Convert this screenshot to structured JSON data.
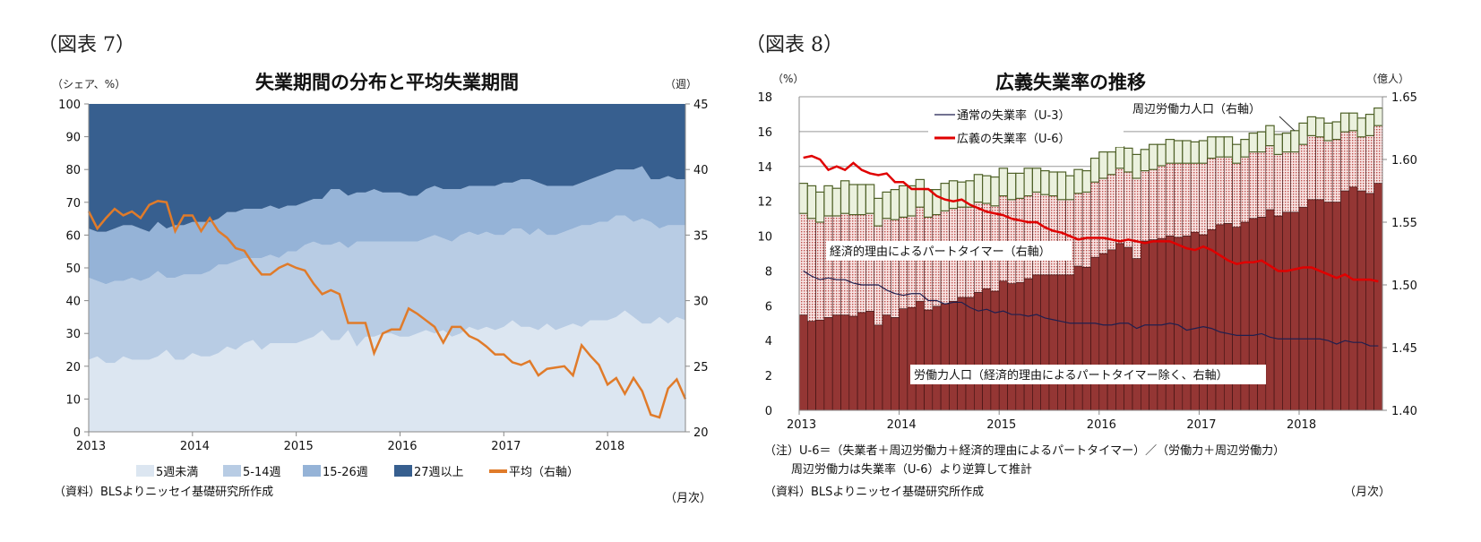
{
  "chart_data": [
    {
      "type": "area",
      "figure_label": "（図表 7）",
      "title": "失業期間の分布と平均失業期間",
      "ylabel_left": "（シェア、%）",
      "ylabel_right": "（週）",
      "xlabel": "（月次）",
      "source": "（資料）BLSよりニッセイ基礎研究所作成",
      "x_start": "2013-01",
      "x_frequency": "monthly",
      "x_ticks": [
        "2013",
        "2014",
        "2015",
        "2016",
        "2017",
        "2018"
      ],
      "ylim_left": [
        0,
        100
      ],
      "yticks_left": [
        0,
        10,
        20,
        30,
        40,
        50,
        60,
        70,
        80,
        90,
        100
      ],
      "ylim_right": [
        20,
        45
      ],
      "yticks_right": [
        20,
        25,
        30,
        35,
        40,
        45
      ],
      "stacked": true,
      "legend_position": "bottom",
      "series": [
        {
          "name": "5週未満",
          "color": "#dce6f1",
          "axis": "left",
          "values": [
            22,
            23,
            21,
            21,
            23,
            22,
            22,
            22,
            23,
            25,
            22,
            22,
            24,
            23,
            23,
            24,
            26,
            25,
            27,
            28,
            25,
            27,
            27,
            27,
            27,
            28,
            29,
            31,
            28,
            28,
            31,
            26,
            29,
            29,
            30,
            30,
            29,
            29,
            30,
            31,
            30,
            31,
            29,
            30,
            32,
            31,
            32,
            31,
            32,
            34,
            32,
            32,
            31,
            33,
            31,
            32,
            33,
            32,
            34,
            34,
            34,
            35,
            37,
            35,
            33,
            33,
            35,
            33,
            35,
            34
          ]
        },
        {
          "name": "5-14週",
          "color": "#b8cce4",
          "axis": "left",
          "values": [
            25,
            23,
            24,
            25,
            23,
            25,
            24,
            25,
            26,
            22,
            25,
            26,
            24,
            25,
            26,
            27,
            25,
            27,
            26,
            25,
            28,
            27,
            26,
            28,
            28,
            29,
            29,
            26,
            29,
            30,
            25,
            32,
            29,
            29,
            28,
            28,
            29,
            29,
            28,
            28,
            30,
            28,
            29,
            30,
            29,
            29,
            29,
            29,
            28,
            28,
            30,
            28,
            31,
            27,
            29,
            29,
            29,
            31,
            29,
            30,
            30,
            31,
            29,
            29,
            32,
            31,
            27,
            30,
            28,
            29
          ]
        },
        {
          "name": "15-26週",
          "color": "#95b3d7",
          "axis": "left",
          "values": [
            15,
            15,
            16,
            16,
            17,
            16,
            16,
            14,
            15,
            15,
            16,
            15,
            16,
            16,
            15,
            14,
            16,
            15,
            15,
            15,
            15,
            15,
            15,
            14,
            14,
            13,
            13,
            14,
            17,
            16,
            16,
            15,
            15,
            16,
            15,
            15,
            15,
            14,
            14,
            15,
            15,
            15,
            16,
            14,
            14,
            15,
            14,
            15,
            16,
            14,
            15,
            17,
            14,
            15,
            15,
            14,
            13,
            13,
            14,
            14,
            15,
            14,
            14,
            16,
            16,
            13,
            15,
            15,
            14,
            14
          ]
        },
        {
          "name": "27週以上",
          "color": "#375f8f",
          "axis": "left",
          "values": [
            38,
            39,
            39,
            38,
            37,
            37,
            38,
            39,
            36,
            38,
            37,
            37,
            36,
            36,
            36,
            35,
            33,
            33,
            32,
            32,
            32,
            31,
            32,
            31,
            31,
            30,
            29,
            29,
            26,
            26,
            28,
            27,
            27,
            26,
            27,
            27,
            27,
            28,
            28,
            26,
            25,
            26,
            26,
            26,
            25,
            25,
            25,
            25,
            24,
            24,
            23,
            23,
            24,
            25,
            25,
            25,
            25,
            24,
            23,
            22,
            21,
            20,
            20,
            20,
            19,
            23,
            23,
            22,
            23,
            23
          ]
        },
        {
          "name": "平均（右軸）",
          "type": "line",
          "color": "#e07b2a",
          "axis": "right",
          "values": [
            36.8,
            35.5,
            36.3,
            37,
            36.5,
            36.8,
            36.3,
            37.3,
            37.6,
            37.5,
            35.3,
            36.5,
            36.5,
            35.3,
            36.3,
            35.3,
            34.8,
            34,
            33.8,
            32.8,
            32,
            32,
            32.5,
            32.8,
            32.5,
            32.3,
            31.3,
            30.5,
            30.8,
            30.5,
            28.3,
            28.3,
            28.3,
            26,
            27.5,
            27.8,
            27.8,
            29.4,
            29,
            28.5,
            28,
            26.8,
            28,
            28,
            27.3,
            27,
            26.5,
            25.9,
            25.9,
            25.3,
            25.1,
            25.4,
            24.3,
            24.8,
            24.9,
            25,
            24.3,
            26.6,
            25.8,
            25.1,
            23.6,
            24.1,
            22.9,
            24.1,
            23.1,
            21.3,
            21.1,
            23.3,
            24,
            22.5
          ]
        }
      ]
    },
    {
      "type": "bar",
      "figure_label": "（図表 8）",
      "title": "広義失業率の推移",
      "ylabel_left": "（%）",
      "ylabel_right": "（億人）",
      "xlabel": "（月次）",
      "x_start": "2013-01",
      "x_frequency": "monthly",
      "x_ticks": [
        "2013",
        "2014",
        "2015",
        "2016",
        "2017",
        "2018"
      ],
      "ylim_left": [
        0,
        18
      ],
      "yticks_left": [
        0,
        2,
        4,
        6,
        8,
        10,
        12,
        14,
        16,
        18
      ],
      "ylim_right": [
        1.4,
        1.65
      ],
      "yticks_right": [
        "1.40",
        "1.45",
        "1.50",
        "1.55",
        "1.60",
        "1.65"
      ],
      "stacked": true,
      "grid": true,
      "notes": [
        "（注）U-6＝（失業者＋周辺労働力＋経済的理由によるパートタイマー）／（労働力＋周辺労働力）",
        "周辺労働力は失業率（U-6）より逆算して推計"
      ],
      "source": "（資料）BLSよりニッセイ基礎研究所作成",
      "annotations": {
        "labor_force": "労働力人口（経済的理由によるパートタイマー除く、右軸）",
        "part_time": "経済的理由によるパートタイマー（右軸）",
        "marginal": "周辺労働力人口（右軸）"
      },
      "legend": [
        "通常の失業率（U-3）",
        "広義の失業率（U-6）"
      ],
      "bar_series": [
        {
          "key": "labor_force",
          "color": "#943634",
          "axis": "right",
          "values": [
            1.476,
            1.471,
            1.472,
            1.474,
            1.476,
            1.476,
            1.475,
            1.478,
            1.479,
            1.468,
            1.476,
            1.474,
            1.481,
            1.482,
            1.487,
            1.48,
            1.483,
            1.485,
            1.487,
            1.49,
            1.49,
            1.494,
            1.497,
            1.495,
            1.503,
            1.501,
            1.502,
            1.505,
            1.508,
            1.508,
            1.508,
            1.508,
            1.508,
            1.515,
            1.514,
            1.522,
            1.525,
            1.528,
            1.533,
            1.53,
            1.521,
            1.535,
            1.536,
            1.537,
            1.539,
            1.538,
            1.539,
            1.542,
            1.54,
            1.544,
            1.548,
            1.549,
            1.546,
            1.55,
            1.553,
            1.554,
            1.56,
            1.555,
            1.558,
            1.558,
            1.562,
            1.568,
            1.568,
            1.566,
            1.566,
            1.575,
            1.578,
            1.575,
            1.573,
            1.581
          ]
        },
        {
          "key": "part_time",
          "color": "#e6b9b8",
          "axis": "right",
          "values": [
            0.081,
            0.082,
            0.078,
            0.081,
            0.079,
            0.081,
            0.081,
            0.078,
            0.078,
            0.079,
            0.077,
            0.078,
            0.073,
            0.073,
            0.075,
            0.074,
            0.073,
            0.074,
            0.074,
            0.072,
            0.072,
            0.072,
            0.068,
            0.068,
            0.068,
            0.067,
            0.067,
            0.066,
            0.066,
            0.064,
            0.063,
            0.06,
            0.06,
            0.058,
            0.06,
            0.06,
            0.06,
            0.06,
            0.06,
            0.06,
            0.064,
            0.056,
            0.056,
            0.058,
            0.058,
            0.059,
            0.058,
            0.055,
            0.057,
            0.057,
            0.054,
            0.053,
            0.051,
            0.052,
            0.053,
            0.052,
            0.051,
            0.049,
            0.048,
            0.048,
            0.05,
            0.051,
            0.05,
            0.049,
            0.05,
            0.047,
            0.045,
            0.043,
            0.046,
            0.046
          ]
        },
        {
          "key": "marginal",
          "color": "#ebf1de",
          "axis": "right",
          "values": [
            0.024,
            0.026,
            0.024,
            0.024,
            0.022,
            0.026,
            0.024,
            0.024,
            0.023,
            0.022,
            0.021,
            0.024,
            0.025,
            0.024,
            0.022,
            0.022,
            0.02,
            0.022,
            0.022,
            0.02,
            0.021,
            0.022,
            0.022,
            0.023,
            0.022,
            0.021,
            0.02,
            0.022,
            0.019,
            0.019,
            0.019,
            0.022,
            0.019,
            0.019,
            0.017,
            0.019,
            0.021,
            0.018,
            0.017,
            0.019,
            0.019,
            0.017,
            0.02,
            0.017,
            0.019,
            0.018,
            0.018,
            0.017,
            0.018,
            0.017,
            0.016,
            0.016,
            0.015,
            0.014,
            0.015,
            0.016,
            0.016,
            0.016,
            0.015,
            0.017,
            0.017,
            0.015,
            0.015,
            0.014,
            0.014,
            0.015,
            0.014,
            0.015,
            0.017,
            0.014
          ]
        }
      ],
      "line_series": [
        {
          "name": "通常の失業率（U-3）",
          "color": "#1f1f4f",
          "axis": "left",
          "values": [
            8.0,
            7.7,
            7.5,
            7.6,
            7.5,
            7.5,
            7.3,
            7.2,
            7.2,
            7.2,
            6.9,
            6.7,
            6.6,
            6.7,
            6.7,
            6.3,
            6.3,
            6.1,
            6.2,
            6.2,
            5.9,
            5.7,
            5.8,
            5.6,
            5.7,
            5.5,
            5.5,
            5.4,
            5.5,
            5.3,
            5.2,
            5.1,
            5.0,
            5.0,
            5.0,
            5.0,
            4.9,
            4.9,
            5.0,
            5.0,
            4.7,
            4.9,
            4.9,
            4.9,
            5.0,
            4.9,
            4.6,
            4.7,
            4.8,
            4.7,
            4.5,
            4.4,
            4.3,
            4.3,
            4.3,
            4.4,
            4.2,
            4.1,
            4.1,
            4.1,
            4.1,
            4.1,
            4.1,
            4.0,
            3.8,
            4.0,
            3.9,
            3.9,
            3.7,
            3.7
          ]
        },
        {
          "name": "広義の失業率（U-6）",
          "color": "#e00000",
          "axis": "left",
          "values": [
            14.5,
            14.6,
            14.4,
            13.8,
            14.0,
            13.8,
            14.2,
            13.8,
            13.6,
            13.5,
            13.6,
            13.1,
            13.1,
            12.7,
            12.7,
            12.7,
            12.3,
            12.1,
            12.0,
            12.1,
            11.8,
            11.6,
            11.4,
            11.3,
            11.2,
            11.0,
            10.9,
            10.8,
            10.8,
            10.5,
            10.3,
            10.2,
            10.0,
            9.8,
            9.9,
            9.9,
            9.9,
            9.8,
            9.7,
            9.8,
            9.7,
            9.6,
            9.7,
            9.7,
            9.7,
            9.5,
            9.3,
            9.2,
            9.4,
            9.2,
            8.9,
            8.6,
            8.4,
            8.5,
            8.5,
            8.6,
            8.3,
            8.0,
            8.0,
            8.1,
            8.2,
            8.2,
            8.0,
            7.8,
            7.6,
            7.8,
            7.5,
            7.5,
            7.5,
            7.4
          ]
        }
      ]
    }
  ]
}
